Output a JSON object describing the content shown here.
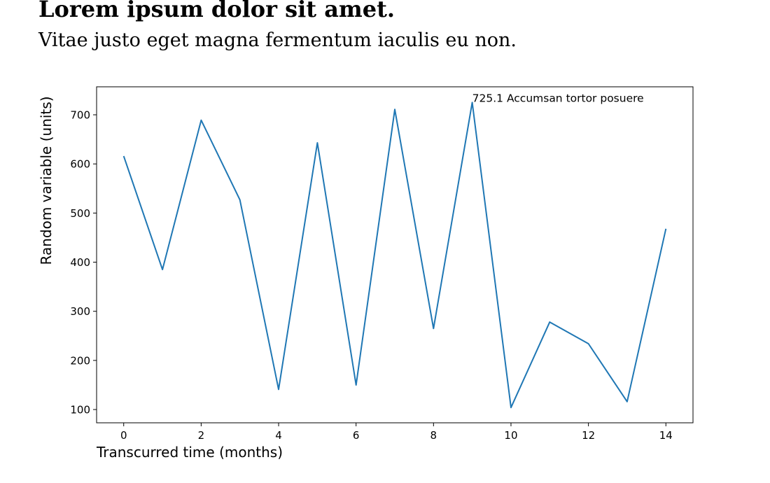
{
  "header": {
    "title": "Lorem ipsum dolor sit amet.",
    "subtitle": "Vitae justo eget magna fermentum iaculis eu non."
  },
  "colors": {
    "line": "#1f77b4",
    "axes": "#000000",
    "background": "#ffffff"
  },
  "chart_data": {
    "type": "line",
    "title": "",
    "xlabel": "Transcurred time (months)",
    "ylabel": "Random variable (units)",
    "xlim": [
      -0.7,
      14.7
    ],
    "ylim": [
      73,
      757
    ],
    "xticks": [
      0,
      2,
      4,
      6,
      8,
      10,
      12,
      14
    ],
    "yticks": [
      100,
      200,
      300,
      400,
      500,
      600,
      700
    ],
    "grid": false,
    "series": [
      {
        "x": [
          0,
          1,
          2,
          3,
          4,
          5,
          6,
          7,
          8,
          9,
          10,
          11,
          12,
          13,
          14
        ],
        "values": [
          616,
          385,
          689,
          527,
          141,
          643,
          150,
          711,
          265,
          725.1,
          104,
          278,
          234,
          116,
          468
        ]
      }
    ],
    "annotations": [
      {
        "x": 9,
        "y": 725.1,
        "text": "725.1 Accumsan tortor posuere"
      }
    ]
  }
}
